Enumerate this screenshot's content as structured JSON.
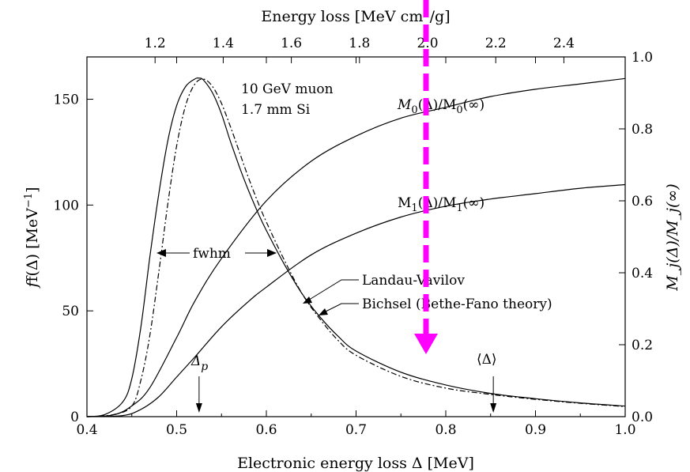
{
  "chart_data": {
    "type": "line",
    "annotations": {
      "particle": "10 GeV muon",
      "absorber": "1.7 mm Si",
      "fwhm": "fwhm",
      "delta_p": "Δ",
      "delta_p_sub": "p",
      "mean_delta": "⟨Δ⟩",
      "m0_label": "M",
      "m0_label_rest": "(Δ)/M",
      "m0_label_end": "(∞)",
      "m0_sub": "0",
      "m1_label": "M",
      "m1_label_rest": "(Δ)/M",
      "m1_label_end": "(∞)",
      "m1_sub": "1",
      "landau_vavilov": "Landau-Vavilov",
      "bichsel": "Bichsel (Bethe-Fano theory)"
    },
    "x_axis": {
      "label": "Electronic energy loss Δ  [MeV]",
      "range": [
        0.4,
        1.0
      ],
      "ticks": [
        "0.4",
        "0.5",
        "0.6",
        "0.7",
        "0.8",
        "0.9",
        "1.0"
      ]
    },
    "x_top_axis": {
      "label_pre": "Energy loss  [MeV cm",
      "label_sup": "2",
      "label_post": "/g]",
      "range": [
        1.0,
        2.58
      ],
      "ticks": [
        "1.2",
        "1.4",
        "1.6",
        "1.8",
        "2.0",
        "2.2",
        "2.4"
      ]
    },
    "y_axis": {
      "label_pre": "f(Δ)  [MeV",
      "label_sup": "−1",
      "label_post": "]",
      "range": [
        0,
        170
      ],
      "ticks": [
        "0",
        "50",
        "100",
        "150"
      ]
    },
    "y_right_axis": {
      "label": "M_j(Δ)/M_j(∞)",
      "range": [
        0.0,
        1.0
      ],
      "ticks": [
        "0.0",
        "0.2",
        "0.4",
        "0.6",
        "0.8",
        "1.0"
      ]
    },
    "series": [
      {
        "name": "Bichsel (Bethe-Fano theory)",
        "style": "solid",
        "axis": "left",
        "x": [
          0.4,
          0.42,
          0.44,
          0.45,
          0.46,
          0.47,
          0.48,
          0.49,
          0.5,
          0.51,
          0.52,
          0.525,
          0.53,
          0.54,
          0.55,
          0.56,
          0.57,
          0.58,
          0.59,
          0.6,
          0.62,
          0.64,
          0.66,
          0.68,
          0.7,
          0.75,
          0.8,
          0.85,
          0.9,
          0.95,
          1.0
        ],
        "y": [
          0,
          1,
          7,
          18,
          42,
          75,
          105,
          130,
          147,
          156,
          159.5,
          160,
          159,
          153,
          143,
          130,
          118,
          107,
          97,
          88,
          72,
          58,
          47,
          38,
          31,
          21,
          15,
          11,
          8.5,
          6.5,
          5
        ]
      },
      {
        "name": "Landau-Vavilov",
        "style": "dashdot",
        "axis": "left",
        "x": [
          0.4,
          0.43,
          0.45,
          0.46,
          0.47,
          0.48,
          0.49,
          0.5,
          0.51,
          0.52,
          0.53,
          0.54,
          0.55,
          0.56,
          0.57,
          0.58,
          0.59,
          0.6,
          0.62,
          0.64,
          0.66,
          0.68,
          0.7,
          0.75,
          0.8,
          0.85,
          0.9,
          0.95,
          1.0
        ],
        "y": [
          0,
          1,
          5,
          17,
          38,
          68,
          100,
          128,
          147,
          157,
          159.5,
          156,
          148,
          137,
          125,
          113,
          102,
          92,
          74,
          58,
          46,
          36,
          29,
          19,
          13.5,
          10.5,
          8.2,
          6.3,
          4.8
        ]
      },
      {
        "name": "M0(Δ)/M0(∞)",
        "style": "solid",
        "axis": "right",
        "x": [
          0.4,
          0.43,
          0.45,
          0.47,
          0.5,
          0.52,
          0.55,
          0.6,
          0.65,
          0.7,
          0.75,
          0.8,
          0.85,
          0.9,
          0.95,
          1.0
        ],
        "y": [
          0,
          0.005,
          0.03,
          0.08,
          0.22,
          0.32,
          0.44,
          0.6,
          0.71,
          0.78,
          0.83,
          0.86,
          0.89,
          0.91,
          0.925,
          0.94
        ]
      },
      {
        "name": "M1(Δ)/M1(∞)",
        "style": "solid",
        "axis": "right",
        "x": [
          0.4,
          0.44,
          0.46,
          0.48,
          0.5,
          0.52,
          0.55,
          0.58,
          0.6,
          0.65,
          0.7,
          0.75,
          0.8,
          0.85,
          0.9,
          0.95,
          1.0
        ],
        "y": [
          0,
          0.003,
          0.02,
          0.055,
          0.11,
          0.165,
          0.25,
          0.32,
          0.36,
          0.45,
          0.51,
          0.555,
          0.585,
          0.605,
          0.62,
          0.635,
          0.645
        ]
      }
    ],
    "markers": [
      {
        "label": "delta_p",
        "x": 0.525
      },
      {
        "label": "mean_delta",
        "x": 0.853
      }
    ]
  },
  "overlay": {
    "arrow_color": "#ff00ff"
  }
}
